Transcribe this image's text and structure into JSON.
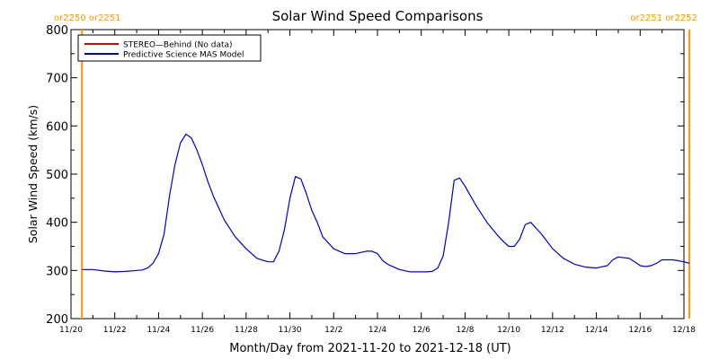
{
  "chart_data": {
    "type": "line",
    "title": "Solar Wind Speed Comparisons",
    "xlabel": "Month/Day from 2021-11-20 to 2021-12-18 (UT)",
    "ylabel": "Solar Wind Speed (km/s)",
    "xlim": [
      "2021-11-20",
      "2021-12-18"
    ],
    "ylim": [
      200,
      800
    ],
    "x_ticks": [
      {
        "date": "2021-11-20",
        "label": "11/20"
      },
      {
        "date": "2021-11-22",
        "label": "11/22"
      },
      {
        "date": "2021-11-24",
        "label": "11/24"
      },
      {
        "date": "2021-11-26",
        "label": "11/26"
      },
      {
        "date": "2021-11-28",
        "label": "11/28"
      },
      {
        "date": "2021-11-30",
        "label": "11/30"
      },
      {
        "date": "2021-12-02",
        "label": "12/2"
      },
      {
        "date": "2021-12-04",
        "label": "12/4"
      },
      {
        "date": "2021-12-06",
        "label": "12/6"
      },
      {
        "date": "2021-12-08",
        "label": "12/8"
      },
      {
        "date": "2021-12-10",
        "label": "12/10"
      },
      {
        "date": "2021-12-12",
        "label": "12/12"
      },
      {
        "date": "2021-12-14",
        "label": "12/14"
      },
      {
        "date": "2021-12-16",
        "label": "12/16"
      },
      {
        "date": "2021-12-18",
        "label": "12/18"
      }
    ],
    "y_ticks": [
      200,
      300,
      400,
      500,
      600,
      700,
      800
    ],
    "grid": false,
    "legend_position": "top-left",
    "carrington_markers": [
      {
        "date": "2021-11-20 12:00",
        "label": "or2250 or2251",
        "color": "#ff9900",
        "label_side": "left"
      },
      {
        "date": "2021-12-18 06:00",
        "label": "or2251 or2252",
        "color": "#ff9900",
        "label_side": "right"
      }
    ],
    "series": [
      {
        "name": "STEREO—Behind (No data)",
        "color": "#cc0000",
        "x": [],
        "values": []
      },
      {
        "name": "Predictive Science MAS Model",
        "color": "#0000cc",
        "x": [
          "2021-11-20 12:00",
          "2021-11-21 00:00",
          "2021-11-21 12:00",
          "2021-11-22 00:00",
          "2021-11-22 12:00",
          "2021-11-23 00:00",
          "2021-11-23 06:00",
          "2021-11-23 12:00",
          "2021-11-23 18:00",
          "2021-11-24 00:00",
          "2021-11-24 06:00",
          "2021-11-24 12:00",
          "2021-11-24 18:00",
          "2021-11-25 00:00",
          "2021-11-25 06:00",
          "2021-11-25 12:00",
          "2021-11-25 18:00",
          "2021-11-26 00:00",
          "2021-11-26 06:00",
          "2021-11-26 12:00",
          "2021-11-27 00:00",
          "2021-11-27 12:00",
          "2021-11-28 00:00",
          "2021-11-28 12:00",
          "2021-11-29 00:00",
          "2021-11-29 06:00",
          "2021-11-29 12:00",
          "2021-11-29 18:00",
          "2021-11-30 00:00",
          "2021-11-30 06:00",
          "2021-11-30 12:00",
          "2021-11-30 18:00",
          "2021-12-01 00:00",
          "2021-12-01 06:00",
          "2021-12-01 12:00",
          "2021-12-02 00:00",
          "2021-12-02 12:00",
          "2021-12-03 00:00",
          "2021-12-03 12:00",
          "2021-12-03 18:00",
          "2021-12-04 00:00",
          "2021-12-04 06:00",
          "2021-12-04 12:00",
          "2021-12-05 00:00",
          "2021-12-05 12:00",
          "2021-12-06 00:00",
          "2021-12-06 06:00",
          "2021-12-06 12:00",
          "2021-12-06 18:00",
          "2021-12-07 00:00",
          "2021-12-07 06:00",
          "2021-12-07 12:00",
          "2021-12-07 18:00",
          "2021-12-08 00:00",
          "2021-12-08 06:00",
          "2021-12-08 12:00",
          "2021-12-09 00:00",
          "2021-12-09 12:00",
          "2021-12-09 18:00",
          "2021-12-10 00:00",
          "2021-12-10 06:00",
          "2021-12-10 12:00",
          "2021-12-10 18:00",
          "2021-12-11 00:00",
          "2021-12-11 12:00",
          "2021-12-12 00:00",
          "2021-12-12 12:00",
          "2021-12-13 00:00",
          "2021-12-13 12:00",
          "2021-12-14 00:00",
          "2021-12-14 12:00",
          "2021-12-14 18:00",
          "2021-12-15 00:00",
          "2021-12-15 12:00",
          "2021-12-15 18:00",
          "2021-12-16 00:00",
          "2021-12-16 06:00",
          "2021-12-16 12:00",
          "2021-12-16 18:00",
          "2021-12-17 00:00",
          "2021-12-17 12:00",
          "2021-12-18 00:00",
          "2021-12-18 06:00"
        ],
        "values": [
          302,
          302,
          299,
          297,
          298,
          300,
          301,
          305,
          315,
          335,
          375,
          455,
          520,
          565,
          583,
          575,
          550,
          520,
          485,
          455,
          405,
          370,
          345,
          325,
          318,
          318,
          340,
          385,
          450,
          495,
          490,
          460,
          425,
          400,
          370,
          345,
          335,
          335,
          340,
          340,
          335,
          320,
          312,
          302,
          297,
          297,
          297,
          298,
          305,
          330,
          400,
          487,
          492,
          475,
          455,
          435,
          400,
          372,
          360,
          350,
          350,
          365,
          395,
          400,
          375,
          345,
          325,
          313,
          307,
          305,
          310,
          322,
          328,
          325,
          318,
          310,
          308,
          310,
          315,
          322,
          322,
          318,
          315
        ]
      }
    ]
  }
}
